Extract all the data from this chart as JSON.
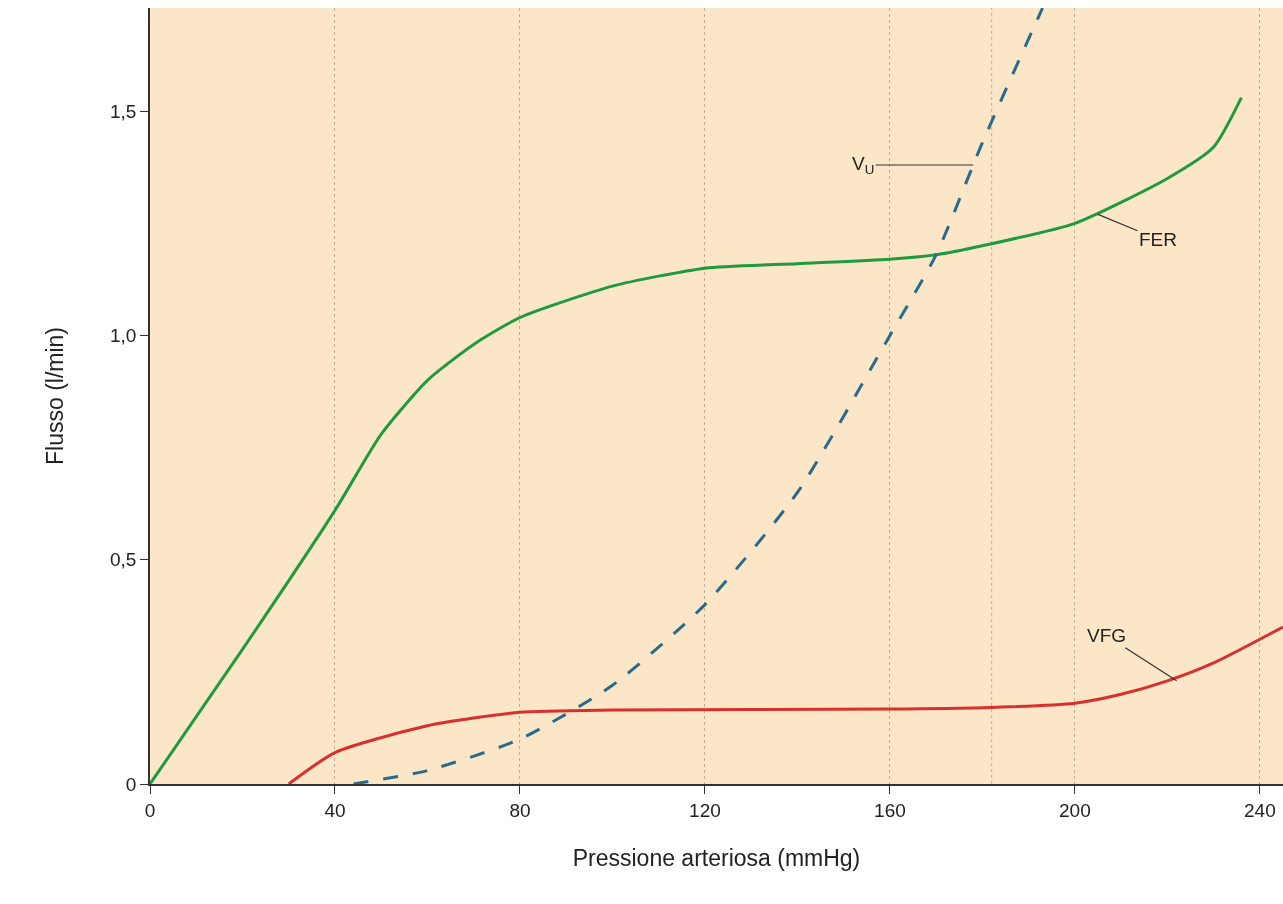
{
  "chart_data": {
    "type": "line",
    "xlabel": "Pressione arteriosa (mmHg)",
    "ylabel": "Flusso (l/min)",
    "xlim": [
      0,
      245
    ],
    "ylim": [
      0,
      1.73
    ],
    "xticks": [
      0,
      40,
      80,
      120,
      160,
      200,
      240
    ],
    "yticks": [
      0,
      {
        "value": 0.5,
        "label": "0,5"
      },
      {
        "value": 1.0,
        "label": "1,0"
      },
      {
        "value": 1.5,
        "label": "1,5"
      }
    ],
    "grid": "x",
    "marker": "none",
    "ref_lines": [
      {
        "axis": "x",
        "value": 182,
        "label": null,
        "color": "#b9aa95",
        "line_style": "dotted"
      }
    ],
    "series": [
      {
        "color": "#1f9a3f",
        "line_style": "solid",
        "x": [
          0,
          20,
          40,
          50,
          60,
          70,
          80,
          100,
          120,
          140,
          160,
          170,
          180,
          200,
          220,
          230,
          236
        ],
        "values": [
          0,
          0.3,
          0.61,
          0.78,
          0.9,
          0.98,
          1.04,
          1.11,
          1.15,
          1.16,
          1.17,
          1.18,
          1.2,
          1.25,
          1.35,
          1.42,
          1.53
        ]
      },
      {
        "color": "#d8302e",
        "line_style": "solid",
        "x": [
          30,
          40,
          60,
          80,
          100,
          160,
          180,
          200,
          210,
          220,
          230,
          245
        ],
        "values": [
          0,
          0.07,
          0.13,
          0.16,
          0.165,
          0.167,
          0.17,
          0.18,
          0.2,
          0.23,
          0.27,
          0.35
        ]
      },
      {
        "color": "#2a6a8a",
        "line_style": "dashed",
        "x": [
          44,
          60,
          80,
          100,
          120,
          140,
          160,
          170,
          180,
          193
        ],
        "values": [
          0,
          0.03,
          0.1,
          0.22,
          0.4,
          0.65,
          1.0,
          1.18,
          1.43,
          1.73
        ]
      }
    ],
    "annotations": [
      {
        "text": "V$_{U}$",
        "x": 178,
        "y": 1.38
      },
      {
        "text": "FER",
        "x": 205,
        "y": 1.27
      },
      {
        "text": "VFG",
        "x": 222,
        "y": 0.23
      }
    ]
  }
}
